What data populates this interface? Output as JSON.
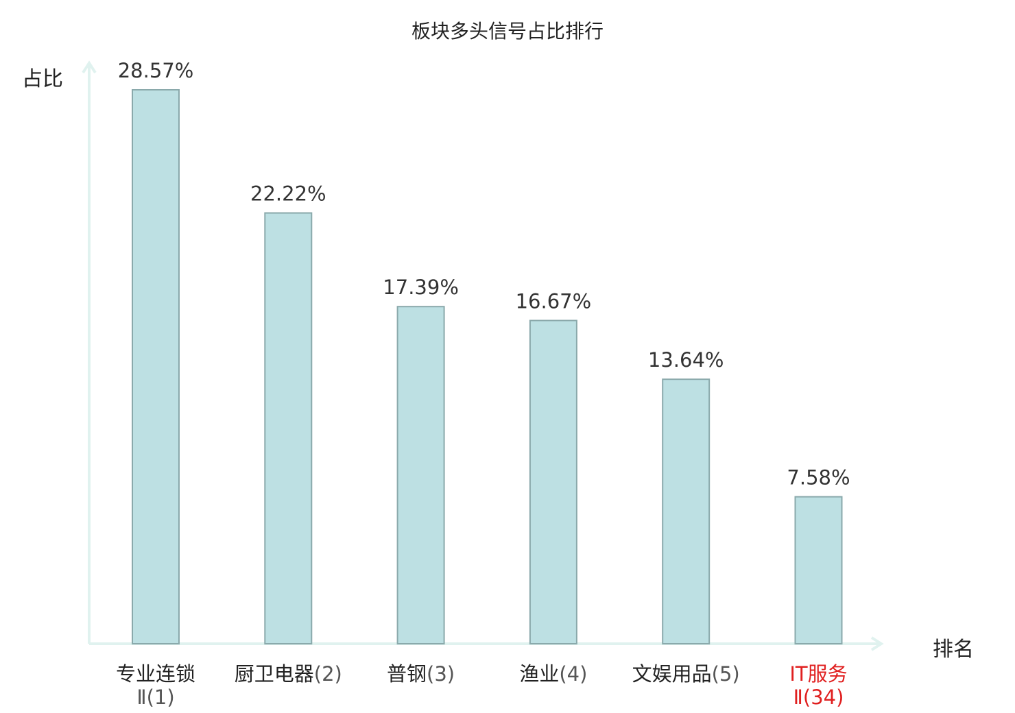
{
  "chart_data": {
    "type": "bar",
    "title": "板块多头信号占比排行",
    "ylabel": "占比",
    "xlabel": "排名",
    "unit": "%",
    "ylim": [
      0,
      28.57
    ],
    "grid": false,
    "legend": "none",
    "categories": [
      {
        "name": "专业连锁",
        "line2": "Ⅱ",
        "rank": "(1)",
        "highlight": false
      },
      {
        "name": "厨卫电器",
        "line2": "",
        "rank": "(2)",
        "highlight": false
      },
      {
        "name": "普钢",
        "line2": "",
        "rank": "(3)",
        "highlight": false
      },
      {
        "name": "渔业",
        "line2": "",
        "rank": "(4)",
        "highlight": false
      },
      {
        "name": "文娱用品",
        "line2": "",
        "rank": "(5)",
        "highlight": false
      },
      {
        "name": "IT服务",
        "line2": "Ⅱ",
        "rank": "(34)",
        "highlight": true
      }
    ],
    "values": [
      28.57,
      22.22,
      17.39,
      16.67,
      13.64,
      7.58
    ],
    "value_labels": [
      "28.57%",
      "22.22%",
      "17.39%",
      "16.67%",
      "13.64%",
      "7.58%"
    ],
    "colors": {
      "bar_fill": "#bde0e3",
      "bar_stroke": "#8aa9ab",
      "axis": "#e0f2ef",
      "highlight": "#e02020"
    }
  }
}
